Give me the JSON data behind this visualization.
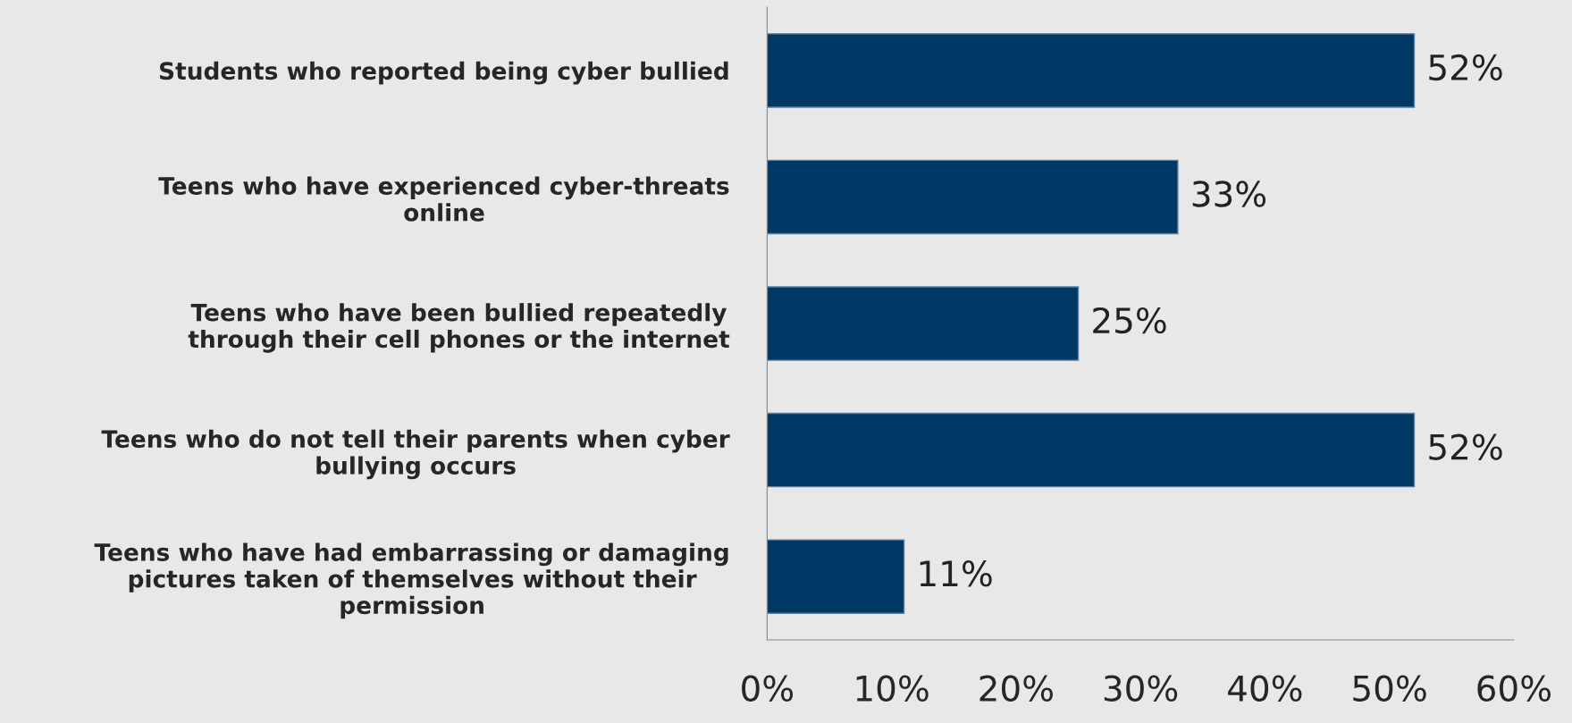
{
  "chart_data": {
    "type": "bar",
    "orientation": "horizontal",
    "categories": [
      "Students who reported being cyber bullied",
      "Teens who have experienced cyber-threats\nonline",
      "Teens who have been bullied repeatedly\nthrough their cell phones or the internet",
      "Teens who do not tell their parents when cyber\nbullying occurs",
      "Teens who have had embarrassing or damaging\npictures taken of themselves without their\npermission"
    ],
    "values": [
      52,
      33,
      25,
      52,
      11
    ],
    "value_labels": [
      "52%",
      "33%",
      "25%",
      "52%",
      "11%"
    ],
    "color": "#003865",
    "xlim": [
      0,
      60
    ],
    "xticks": [
      {
        "value": 0,
        "label": "0%"
      },
      {
        "value": 10,
        "label": "10%"
      },
      {
        "value": 20,
        "label": "20%"
      },
      {
        "value": 30,
        "label": "30%"
      },
      {
        "value": 40,
        "label": "40%"
      },
      {
        "value": 50,
        "label": "50%"
      },
      {
        "value": 60,
        "label": "60%"
      }
    ]
  }
}
